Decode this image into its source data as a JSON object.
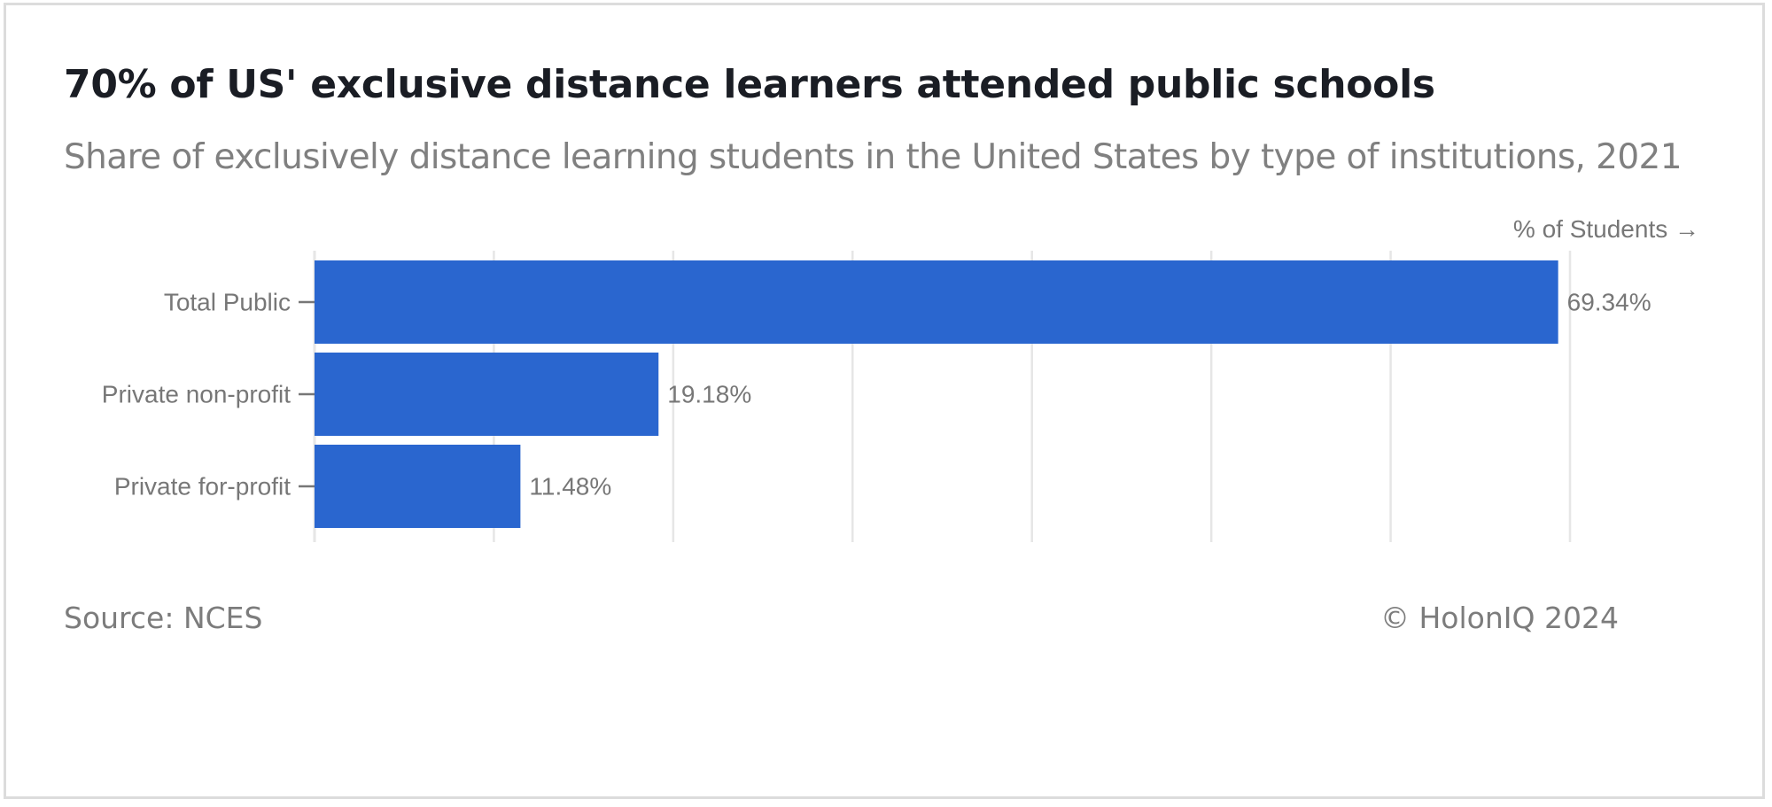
{
  "header": {
    "title": "70% of US' exclusive distance learners attended public schools",
    "subtitle": "Share of exclusively distance learning students in the United States by type of institutions, 2021"
  },
  "footer": {
    "source": "Source: NCES",
    "credit": "© HolonIQ 2024"
  },
  "chart_data": {
    "type": "bar",
    "orientation": "horizontal",
    "categories": [
      "Total Public",
      "Private non-profit",
      "Private for-profit"
    ],
    "values": [
      69.34,
      19.18,
      11.48
    ],
    "value_labels": [
      "69.34%",
      "19.18%",
      "11.48%"
    ],
    "xlabel": "% of Students →",
    "ylabel": "",
    "xlim": [
      0,
      70
    ],
    "grid": true,
    "bar_color": "#2a66cf",
    "grid_color": "#e6e6e6"
  }
}
